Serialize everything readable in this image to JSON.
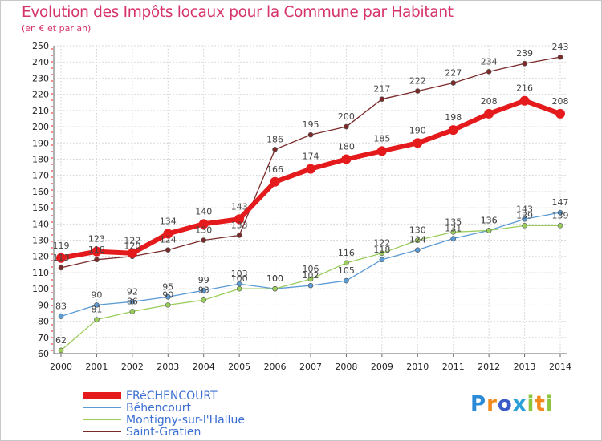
{
  "header": {
    "title": "Evolution des Impôts locaux pour la Commune par Habitant",
    "subtitle": "(en € et par an)"
  },
  "logo": {
    "letters": [
      "P",
      "r",
      "o",
      "x",
      "i",
      "t",
      "i"
    ],
    "alt": "Proxiti"
  },
  "chart_data": {
    "type": "line",
    "title": "Evolution des Impôts locaux pour la Commune par Habitant",
    "subtitle": "(en € et par an)",
    "xlabel": "",
    "ylabel": "",
    "x": [
      2000,
      2001,
      2002,
      2003,
      2004,
      2005,
      2006,
      2007,
      2008,
      2009,
      2010,
      2011,
      2012,
      2013,
      2014
    ],
    "ylim": [
      60,
      250
    ],
    "yticks": [
      60,
      70,
      80,
      90,
      100,
      110,
      120,
      130,
      140,
      150,
      160,
      170,
      180,
      190,
      200,
      210,
      220,
      230,
      240,
      250
    ],
    "grid": true,
    "legend_position": "bottom-left",
    "series": [
      {
        "name": "FRéCHENCOURT",
        "color": "#e41a1c",
        "values": [
          119,
          123,
          122,
          134,
          140,
          143,
          166,
          174,
          180,
          185,
          190,
          198,
          208,
          216,
          208
        ]
      },
      {
        "name": "Béhencourt",
        "color": "#5b9bd5",
        "values": [
          83,
          90,
          92,
          95,
          99,
          103,
          100,
          102,
          105,
          118,
          124,
          131,
          136,
          143,
          147
        ]
      },
      {
        "name": "Montigny-sur-l'Hallue",
        "color": "#9acd5a",
        "values": [
          62,
          81,
          86,
          90,
          93,
          100,
          100,
          106,
          116,
          122,
          130,
          135,
          136,
          139,
          139
        ]
      },
      {
        "name": "Saint-Gratien",
        "color": "#7b2a2a",
        "values": [
          113,
          118,
          120,
          124,
          130,
          133,
          186,
          195,
          200,
          217,
          222,
          227,
          234,
          239,
          243
        ]
      }
    ]
  }
}
